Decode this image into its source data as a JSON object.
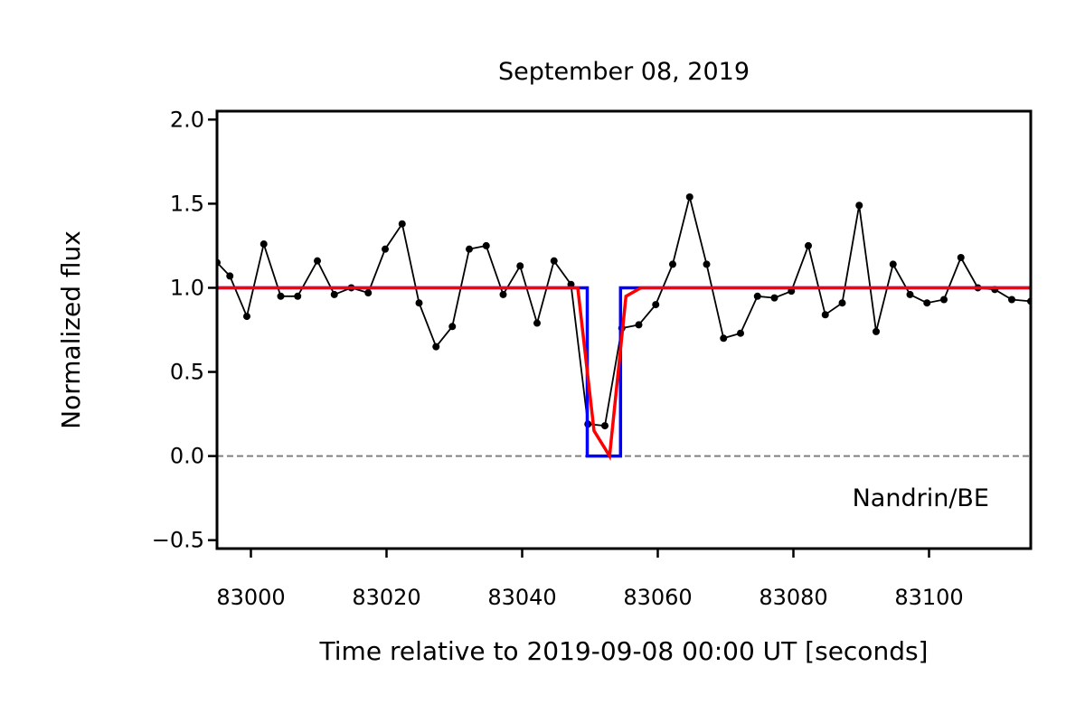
{
  "chart_data": {
    "type": "line",
    "title": "September 08, 2019",
    "xlabel": "Time relative to 2019-09-08 00:00 UT [seconds]",
    "ylabel": "Normalized flux",
    "annotation": "Nandrin/BE",
    "xlim": [
      82995,
      83115
    ],
    "ylim": [
      -0.55,
      2.05
    ],
    "x_ticks": [
      83000,
      83020,
      83040,
      83060,
      83080,
      83100
    ],
    "y_ticks": [
      -0.5,
      0.0,
      0.5,
      1.0,
      1.5,
      2.0
    ],
    "y_tick_labels": [
      "−0.5",
      "0.0",
      "0.5",
      "1.0",
      "1.5",
      "2.0"
    ],
    "reference_line": {
      "y": 0.0,
      "style": "dashed",
      "color": "#808080"
    },
    "colors": {
      "data": "#000000",
      "square_model": "#0000ff",
      "smoothed_model": "#ff0000"
    },
    "series": [
      {
        "style": "black line with dot markers",
        "x": [
          82995,
          82996.9,
          82999.4,
          83001.9,
          83004.4,
          83006.9,
          83009.8,
          83012.3,
          83014.8,
          83017.3,
          83019.8,
          83022.3,
          83024.8,
          83027.3,
          83029.7,
          83032.2,
          83034.7,
          83037.2,
          83039.7,
          83042.2,
          83044.7,
          83047.2,
          83049.7,
          83052.2,
          83054.7,
          83057.2,
          83059.7,
          83062.2,
          83064.7,
          83067.2,
          83069.7,
          83072.2,
          83074.7,
          83077.2,
          83079.7,
          83082.2,
          83084.7,
          83087.2,
          83089.7,
          83092.2,
          83094.7,
          83097.2,
          83099.7,
          83102.2,
          83104.7,
          83107.2,
          83109.7,
          83112.2,
          83115
        ],
        "y": [
          1.15,
          1.07,
          0.83,
          1.26,
          0.95,
          0.95,
          1.16,
          0.96,
          1.0,
          0.97,
          1.23,
          1.38,
          0.91,
          0.65,
          0.77,
          1.23,
          1.25,
          0.96,
          1.13,
          0.79,
          1.16,
          1.02,
          0.19,
          0.18,
          0.76,
          0.78,
          0.9,
          1.14,
          1.54,
          1.14,
          0.7,
          0.73,
          0.95,
          0.94,
          0.98,
          1.25,
          0.84,
          0.91,
          1.49,
          0.74,
          1.14,
          0.96,
          0.91,
          0.93,
          1.18,
          1.0,
          0.99,
          0.93,
          0.92
        ]
      },
      {
        "style": "blue square-well model",
        "x": [
          82995,
          83049.6,
          83049.6,
          83054.5,
          83054.5,
          83115
        ],
        "y": [
          1.0,
          1.0,
          0.0,
          0.0,
          1.0,
          1.0
        ]
      },
      {
        "style": "red smoothed model",
        "x": [
          82995,
          83048.2,
          83050.6,
          83052.9,
          83055.3,
          83057.5,
          83115
        ],
        "y": [
          1.0,
          1.0,
          0.15,
          0.0,
          0.95,
          1.0,
          1.0
        ]
      }
    ]
  }
}
